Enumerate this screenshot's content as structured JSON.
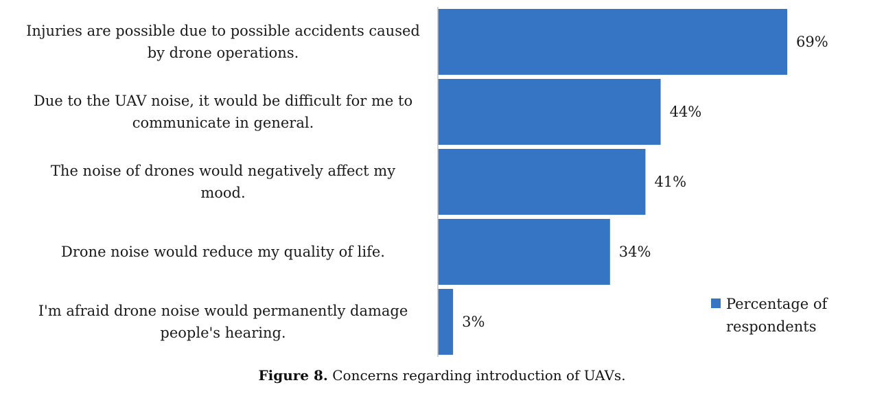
{
  "chart_data": {
    "type": "bar",
    "orientation": "horizontal",
    "categories": [
      [
        "Injuries are possible due to possible accidents caused",
        "by drone operations."
      ],
      [
        "Due to the UAV noise, it would be difficult for me to",
        "communicate in general."
      ],
      [
        "The noise of drones would negatively affect my",
        "mood."
      ],
      [
        "Drone noise would reduce my quality of life."
      ],
      [
        "I'm afraid drone noise would permanently damage",
        "people's hearing."
      ]
    ],
    "series": [
      {
        "name": "Percentage of respondents",
        "values": [
          69,
          44,
          41,
          34,
          3
        ]
      }
    ],
    "value_labels": [
      "69%",
      "44%",
      "41%",
      "34%",
      "3%"
    ],
    "legend_lines": [
      "Percentage of",
      "respondents"
    ],
    "legend_position": "right",
    "xlim": [
      0,
      70
    ],
    "grid": false,
    "colors": {
      "bar": "#3674c4",
      "axis": "#bfbfbf"
    }
  },
  "caption": {
    "label": "Figure 8.",
    "text": " Concerns regarding introduction of UAVs."
  }
}
